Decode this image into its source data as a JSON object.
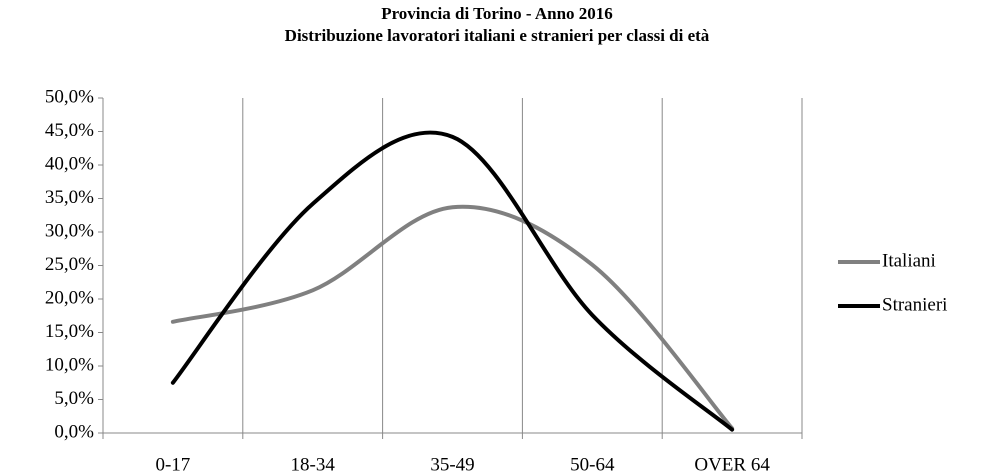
{
  "chart_data": {
    "type": "line",
    "title": "Provincia di Torino - Anno 2016",
    "subtitle": "Distribuzione lavoratori italiani e stranieri per classi di età",
    "categories": [
      "0-17",
      "18-34",
      "35-49",
      "50-64",
      "OVER 64"
    ],
    "series": [
      {
        "name": "Italiani",
        "color": "#808080",
        "values": [
          16.6,
          21.3,
          33.7,
          25.1,
          0.7
        ]
      },
      {
        "name": "Stranieri",
        "color": "#000000",
        "values": [
          7.5,
          34.2,
          44.2,
          17.6,
          0.5
        ]
      }
    ],
    "ylim": [
      0,
      50
    ],
    "yticks": [
      {
        "value": 0,
        "label": "0,0%"
      },
      {
        "value": 5,
        "label": "5,0%"
      },
      {
        "value": 10,
        "label": "10,0%"
      },
      {
        "value": 15,
        "label": "15,0%"
      },
      {
        "value": 20,
        "label": "20,0%"
      },
      {
        "value": 25,
        "label": "25,0%"
      },
      {
        "value": 30,
        "label": "30,0%"
      },
      {
        "value": 35,
        "label": "35,0%"
      },
      {
        "value": 40,
        "label": "40,0%"
      },
      {
        "value": 45,
        "label": "45,0%"
      },
      {
        "value": 50,
        "label": "50,0%"
      }
    ],
    "grid": "x",
    "smooth": true,
    "legend": "right"
  }
}
